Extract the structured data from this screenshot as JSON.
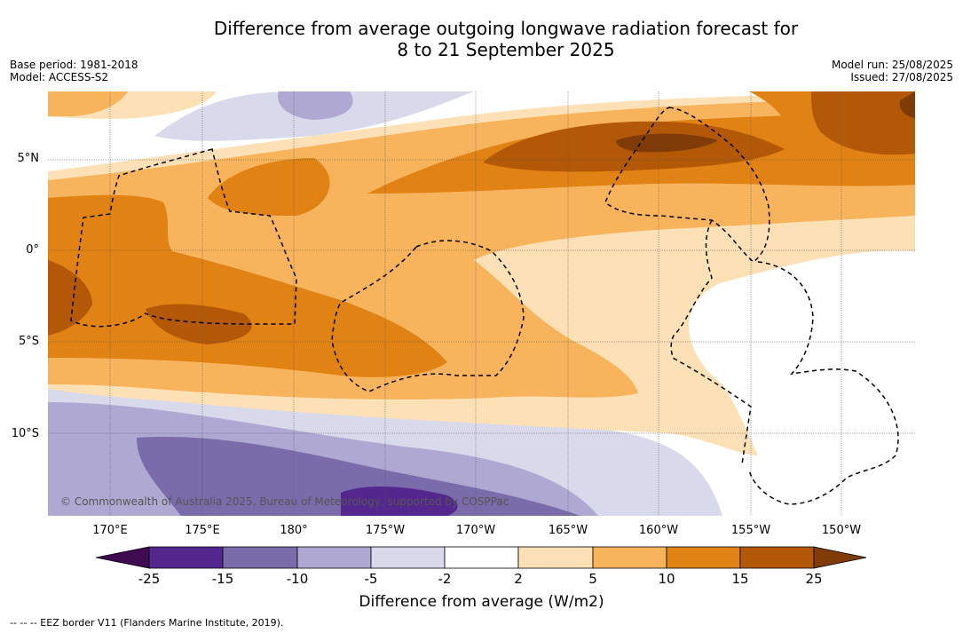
{
  "title_line1": "Difference from average outgoing longwave radiation forecast for",
  "title_line2": "8 to 21 September 2025",
  "meta_left": {
    "base_period": "Base period: 1981-2018",
    "model": "Model: ACCESS-S2"
  },
  "meta_right": {
    "model_run": "Model run: 25/08/2025",
    "issued": "Issued: 27/08/2025"
  },
  "lat_labels": [
    "5°N",
    "0°",
    "5°S",
    "10°S"
  ],
  "lon_labels": [
    "170°E",
    "175°E",
    "180°",
    "175°W",
    "170°W",
    "165°W",
    "160°W",
    "155°W",
    "150°W"
  ],
  "copyright": "© Commonwealth of Australia 2025, Bureau of Meteorology, supported by COSPPac",
  "colorbar": {
    "ticks": [
      "-25",
      "-15",
      "-10",
      "-5",
      "-2",
      "2",
      "5",
      "10",
      "15",
      "25"
    ],
    "label": "Difference from average (W/m2)",
    "colors": [
      "#3f0a4f",
      "#54278f",
      "#7a6bab",
      "#afa8d2",
      "#d9d9ec",
      "#ffffff",
      "#fde0b6",
      "#f8b35d",
      "#e08214",
      "#b35806",
      "#7f3b08"
    ]
  },
  "footnote": "--  --  -- EEZ border V11 (Flanders Marine Institute, 2019)."
}
